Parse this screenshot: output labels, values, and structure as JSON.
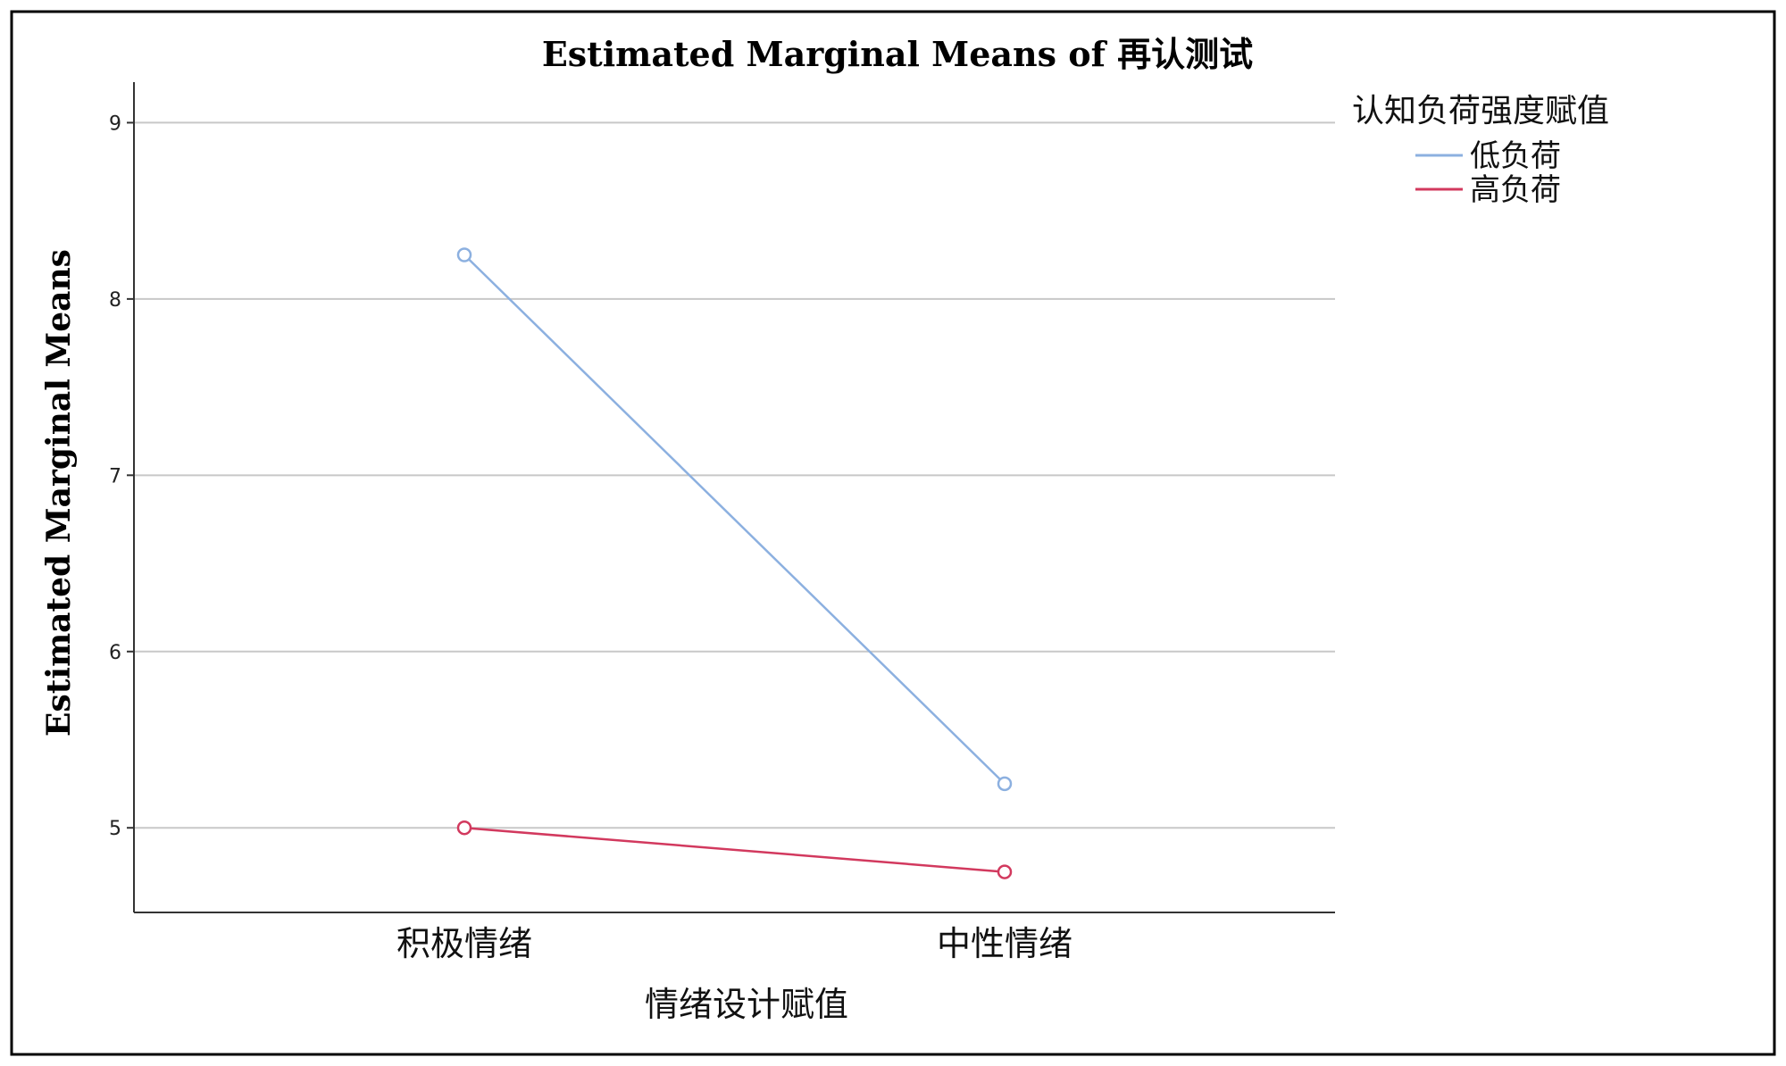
{
  "chart_data": {
    "type": "line",
    "title": "Estimated Marginal Means of 再认测试",
    "xlabel": "情绪设计赋值",
    "ylabel": "Estimated Marginal Means",
    "categories": [
      "积极情绪",
      "中性情绪"
    ],
    "ylim": [
      4.52,
      9.23
    ],
    "yticks": [
      5,
      6,
      7,
      8,
      9
    ],
    "grid": true,
    "legend": {
      "title": "认知负荷强度赋值",
      "position": "top-right"
    },
    "series": [
      {
        "name": "低负荷",
        "color": "#8cb0e0",
        "values": [
          8.25,
          5.25
        ]
      },
      {
        "name": "高负荷",
        "color": "#d2395e",
        "values": [
          5.0,
          4.75
        ]
      }
    ]
  }
}
